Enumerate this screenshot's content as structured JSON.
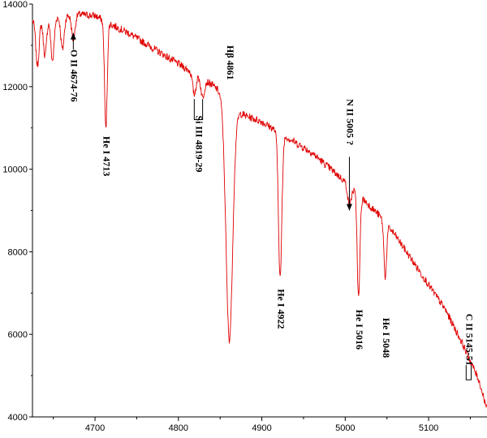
{
  "chart_data": {
    "type": "line",
    "title": "",
    "xlabel": "",
    "ylabel": "",
    "xlim": [
      4625,
      5170
    ],
    "ylim": [
      4000,
      14000
    ],
    "x_ticks": [
      4700,
      4800,
      4900,
      5000,
      5100
    ],
    "y_ticks": [
      4000,
      6000,
      8000,
      10000,
      12000,
      14000
    ],
    "x_tick_labels": [
      "4700",
      "4800",
      "4900",
      "5000",
      "5100"
    ],
    "y_tick_labels": [
      "4000",
      "6000",
      "8000",
      "10000",
      "12000",
      "14000"
    ],
    "line_color": "#e00000",
    "continuum": [
      [
        4625,
        13600
      ],
      [
        4640,
        13650
      ],
      [
        4660,
        13700
      ],
      [
        4680,
        13750
      ],
      [
        4700,
        13720
      ],
      [
        4720,
        13500
      ],
      [
        4740,
        13300
      ],
      [
        4760,
        13050
      ],
      [
        4780,
        12800
      ],
      [
        4800,
        12550
      ],
      [
        4820,
        12300
      ],
      [
        4840,
        12050
      ],
      [
        4860,
        11700
      ],
      [
        4870,
        11400
      ],
      [
        4880,
        11300
      ],
      [
        4900,
        11150
      ],
      [
        4920,
        10900
      ],
      [
        4940,
        10650
      ],
      [
        4960,
        10400
      ],
      [
        4980,
        10050
      ],
      [
        5000,
        9700
      ],
      [
        5020,
        9300
      ],
      [
        5040,
        8900
      ],
      [
        5060,
        8400
      ],
      [
        5080,
        7800
      ],
      [
        5100,
        7200
      ],
      [
        5120,
        6600
      ],
      [
        5140,
        5800
      ],
      [
        5160,
        4900
      ],
      [
        5170,
        4200
      ]
    ],
    "absorption_lines": [
      {
        "x": 4631,
        "depth": 1100,
        "width": 2
      },
      {
        "x": 4640,
        "depth": 900,
        "width": 2
      },
      {
        "x": 4649,
        "depth": 1050,
        "width": 2
      },
      {
        "x": 4661,
        "depth": 800,
        "width": 2
      },
      {
        "x": 4674,
        "depth": 600,
        "width": 2
      },
      {
        "x": 4713,
        "depth": 2600,
        "width": 1.6
      },
      {
        "x": 4819,
        "depth": 500,
        "width": 2
      },
      {
        "x": 4829,
        "depth": 450,
        "width": 2
      },
      {
        "x": 4861,
        "depth": 5800,
        "width": 4
      },
      {
        "x": 4922,
        "depth": 3500,
        "width": 2
      },
      {
        "x": 5005,
        "depth": 500,
        "width": 2
      },
      {
        "x": 5016,
        "depth": 2500,
        "width": 1.6
      },
      {
        "x": 5048,
        "depth": 1300,
        "width": 1.6
      }
    ],
    "annotations": [
      {
        "text": "O II 4674-76",
        "x": 4674,
        "y": 12900,
        "rotate": 90,
        "marker": "arrow-up",
        "marker_y": [
          12900,
          13300
        ]
      },
      {
        "text": "He I 4713",
        "x": 4713,
        "y": 10800,
        "rotate": 90
      },
      {
        "text": "Si III 4819-29",
        "x": 4824,
        "y": 11300,
        "rotate": 90,
        "marker": "bracket",
        "marker_y": [
          11700,
          11200
        ],
        "marker_x": [
          4819,
          4829
        ]
      },
      {
        "text": "Hβ 4861",
        "x": 4861,
        "y": 13000,
        "rotate": 90
      },
      {
        "text": "He I 4922",
        "x": 4922,
        "y": 7100,
        "rotate": 90
      },
      {
        "text": "N II 5005 ?",
        "x": 5005,
        "y": 11700,
        "rotate": 90,
        "marker": "arrow-down",
        "marker_y": [
          10300,
          9000
        ]
      },
      {
        "text": "He I 5016",
        "x": 5016,
        "y": 6600,
        "rotate": 90
      },
      {
        "text": "He I 5048",
        "x": 5048,
        "y": 6400,
        "rotate": 90
      },
      {
        "text": "C II 5145-51",
        "x": 5148,
        "y": 6500,
        "rotate": 90,
        "marker": "bracket",
        "marker_y": [
          5250,
          4900
        ],
        "marker_x": [
          5145,
          5151
        ]
      }
    ]
  }
}
